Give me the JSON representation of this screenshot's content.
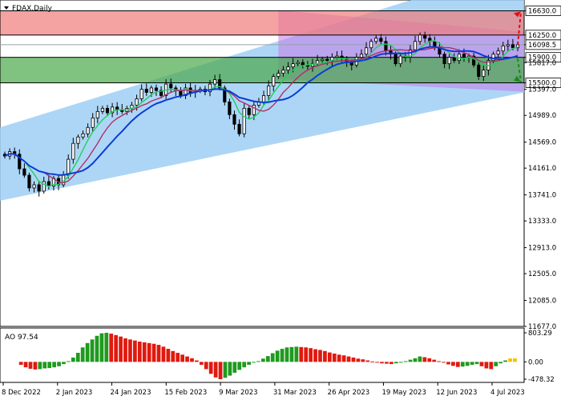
{
  "window": {
    "symbol_title": "FDAX,Daily"
  },
  "indicator": {
    "label": "AO 97.54"
  },
  "chart_data": [
    {
      "type": "candlestick",
      "title": "FDAX,Daily",
      "ylim": [
        11677,
        16800
      ],
      "y_ticks": [
        "16630.0",
        "16250.0",
        "16098.5",
        "15900.0",
        "15817.0",
        "15500.0",
        "15397.0",
        "14989.0",
        "14569.0",
        "14161.0",
        "13741.0",
        "13333.0",
        "12913.0",
        "12505.0",
        "12085.0",
        "11677.0"
      ],
      "x_labels": [
        "8 Dec 2022",
        "2 Jan 2023",
        "24 Jan 2023",
        "15 Feb 2023",
        "9 Mar 2023",
        "31 Mar 2023",
        "26 Apr 2023",
        "19 May 2023",
        "12 Jun 2023",
        "4 Jul 2023"
      ],
      "current_price": 16098.5,
      "levels": {
        "upper_zone": [
          16250,
          16630
        ],
        "lower_zone": [
          15500,
          15900
        ]
      },
      "close_series": [
        14350,
        14420,
        14380,
        14150,
        14050,
        13850,
        13900,
        13800,
        13950,
        13880,
        14000,
        13900,
        14050,
        14300,
        14550,
        14650,
        14700,
        14800,
        14950,
        15050,
        15100,
        15030,
        15120,
        15080,
        15050,
        15100,
        15150,
        15250,
        15400,
        15350,
        15420,
        15380,
        15300,
        15480,
        15420,
        15380,
        15300,
        15420,
        15350,
        15380,
        15400,
        15360,
        15480,
        15550,
        15420,
        15200,
        15000,
        14850,
        14700,
        15100,
        15000,
        15150,
        15200,
        15300,
        15450,
        15600,
        15650,
        15700,
        15750,
        15800,
        15820,
        15780,
        15760,
        15800,
        15850,
        15870,
        15850,
        15900,
        15920,
        15880,
        15820,
        15780,
        15900,
        15950,
        16050,
        16150,
        16200,
        16150,
        16000,
        15950,
        15800,
        15920,
        15900,
        16020,
        16150,
        16250,
        16200,
        16150,
        16050,
        15950,
        15800,
        15900,
        15850,
        15950,
        15900,
        15920,
        15780,
        15600,
        15700,
        15850,
        15950,
        16000,
        16080,
        16100,
        16050,
        16098
      ]
    },
    {
      "type": "histogram",
      "title": "AO 97.54",
      "ylim": [
        -478.32,
        803.29
      ],
      "y_ticks": [
        "803.29",
        "0.00",
        "-478.32"
      ],
      "values": [
        0,
        0,
        0,
        -80,
        -150,
        -190,
        -210,
        -200,
        -180,
        -170,
        -150,
        -120,
        -60,
        20,
        120,
        250,
        400,
        520,
        620,
        720,
        790,
        803,
        780,
        740,
        700,
        650,
        620,
        590,
        560,
        540,
        520,
        500,
        470,
        420,
        360,
        300,
        250,
        200,
        150,
        100,
        40,
        -80,
        -200,
        -330,
        -430,
        -478,
        -440,
        -380,
        -300,
        -220,
        -150,
        -80,
        -20,
        20,
        90,
        160,
        240,
        310,
        360,
        400,
        410,
        420,
        410,
        400,
        380,
        350,
        330,
        300,
        260,
        230,
        200,
        180,
        150,
        120,
        90,
        70,
        40,
        10,
        -20,
        -40,
        -50,
        -60,
        -40,
        -20,
        20,
        60,
        100,
        150,
        130,
        100,
        60,
        20,
        -20,
        -70,
        -110,
        -140,
        -130,
        -110,
        -80,
        -60,
        -120,
        -180,
        -200,
        -120,
        -40,
        40,
        97,
        97
      ],
      "colors": {
        "up": "#1f9a1f",
        "down": "#e0190f",
        "last": "#f2c200"
      }
    }
  ]
}
